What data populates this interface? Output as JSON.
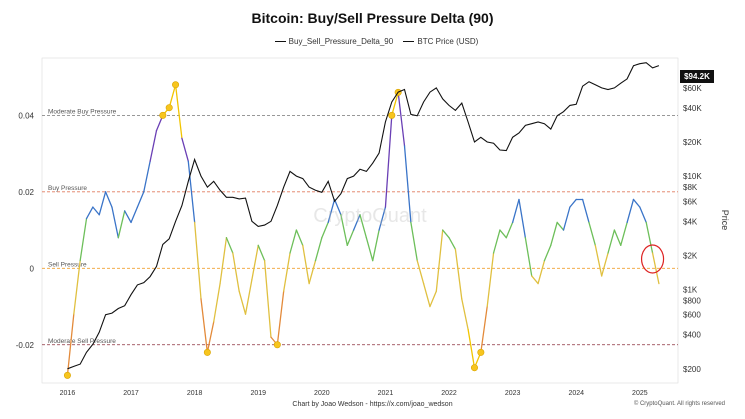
{
  "chart_data": {
    "type": "line",
    "title": "Bitcoin: Buy/Sell Pressure Delta (90)",
    "xlabel": "",
    "ylabel": "",
    "y2label": "Price",
    "legend": [
      "Buy_Sell_Pressure_Delta_90",
      "BTC Price (USD)"
    ],
    "legend_position": "top",
    "grid": false,
    "y_ticks": [
      "0.04",
      "0.02",
      "0",
      "-0.02"
    ],
    "y2_ticks": [
      "$60K",
      "$40K",
      "$20K",
      "$10K",
      "$8K",
      "$6K",
      "$4K",
      "$2K",
      "$1K",
      "$800",
      "$600",
      "$400",
      "$200"
    ],
    "x_ticks": [
      "2016",
      "2017",
      "2018",
      "2019",
      "2020",
      "2021",
      "2022",
      "2023",
      "2024",
      "2025"
    ],
    "x_range": [
      "2016-01",
      "2025-06"
    ],
    "ylim": [
      -0.03,
      0.055
    ],
    "current_price_label": "$94.2K",
    "reference_lines": [
      {
        "label": "Moderate Buy Pressure",
        "value": 0.04,
        "color": "#777777"
      },
      {
        "label": "Buy Pressure",
        "value": 0.02,
        "color": "#e07a5f"
      },
      {
        "label": "Sell Pressure",
        "value": 0.0,
        "color": "#f0a030"
      },
      {
        "label": "Moderate Sell Pressure",
        "value": -0.02,
        "color": "#8b2d3b"
      }
    ],
    "series": [
      {
        "name": "Buy_Sell_Pressure_Delta_90",
        "x": [
          2016.0,
          2016.1,
          2016.2,
          2016.3,
          2016.4,
          2016.5,
          2016.6,
          2016.7,
          2016.8,
          2016.9,
          2017.0,
          2017.1,
          2017.2,
          2017.3,
          2017.4,
          2017.5,
          2017.6,
          2017.7,
          2017.8,
          2017.9,
          2018.0,
          2018.1,
          2018.2,
          2018.3,
          2018.4,
          2018.5,
          2018.6,
          2018.7,
          2018.8,
          2018.9,
          2019.0,
          2019.1,
          2019.2,
          2019.3,
          2019.4,
          2019.5,
          2019.6,
          2019.7,
          2019.8,
          2019.9,
          2020.0,
          2020.1,
          2020.2,
          2020.3,
          2020.4,
          2020.5,
          2020.6,
          2020.7,
          2020.8,
          2020.9,
          2021.0,
          2021.1,
          2021.2,
          2021.3,
          2021.4,
          2021.5,
          2021.6,
          2021.7,
          2021.8,
          2021.9,
          2022.0,
          2022.1,
          2022.2,
          2022.3,
          2022.4,
          2022.5,
          2022.6,
          2022.7,
          2022.8,
          2022.9,
          2023.0,
          2023.1,
          2023.2,
          2023.3,
          2023.4,
          2023.5,
          2023.6,
          2023.7,
          2023.8,
          2023.9,
          2024.0,
          2024.1,
          2024.2,
          2024.3,
          2024.4,
          2024.5,
          2024.6,
          2024.7,
          2024.8,
          2024.9,
          2025.0,
          2025.1,
          2025.2,
          2025.3
        ],
        "values": [
          -0.028,
          -0.012,
          0.002,
          0.013,
          0.016,
          0.014,
          0.02,
          0.016,
          0.008,
          0.015,
          0.012,
          0.016,
          0.02,
          0.028,
          0.036,
          0.04,
          0.042,
          0.048,
          0.034,
          0.028,
          0.012,
          -0.008,
          -0.022,
          -0.014,
          -0.004,
          0.008,
          0.004,
          -0.006,
          -0.012,
          -0.003,
          0.006,
          0.002,
          -0.018,
          -0.02,
          -0.006,
          0.004,
          0.01,
          0.006,
          -0.004,
          0.002,
          0.008,
          0.012,
          0.018,
          0.014,
          0.006,
          0.01,
          0.014,
          0.008,
          0.002,
          0.01,
          0.016,
          0.04,
          0.046,
          0.032,
          0.012,
          0.002,
          -0.004,
          -0.01,
          -0.006,
          0.01,
          0.008,
          0.005,
          -0.008,
          -0.016,
          -0.026,
          -0.022,
          -0.01,
          0.004,
          0.01,
          0.008,
          0.012,
          0.018,
          0.008,
          -0.002,
          -0.004,
          0.002,
          0.006,
          0.012,
          0.01,
          0.016,
          0.018,
          0.018,
          0.012,
          0.006,
          -0.002,
          0.004,
          0.01,
          0.006,
          0.012,
          0.018,
          0.016,
          0.012,
          0.004,
          -0.004
        ]
      },
      {
        "name": "BTC Price (USD)",
        "x": [
          2016.0,
          2016.1,
          2016.2,
          2016.3,
          2016.4,
          2016.5,
          2016.6,
          2016.7,
          2016.8,
          2016.9,
          2017.0,
          2017.1,
          2017.2,
          2017.3,
          2017.4,
          2017.5,
          2017.6,
          2017.7,
          2017.8,
          2017.9,
          2018.0,
          2018.1,
          2018.2,
          2018.3,
          2018.4,
          2018.5,
          2018.6,
          2018.7,
          2018.8,
          2018.9,
          2019.0,
          2019.1,
          2019.2,
          2019.3,
          2019.4,
          2019.5,
          2019.6,
          2019.7,
          2019.8,
          2019.9,
          2020.0,
          2020.1,
          2020.2,
          2020.3,
          2020.4,
          2020.5,
          2020.6,
          2020.7,
          2020.8,
          2020.9,
          2021.0,
          2021.1,
          2021.2,
          2021.3,
          2021.4,
          2021.5,
          2021.6,
          2021.7,
          2021.8,
          2021.9,
          2022.0,
          2022.1,
          2022.2,
          2022.3,
          2022.4,
          2022.5,
          2022.6,
          2022.7,
          2022.8,
          2022.9,
          2023.0,
          2023.1,
          2023.2,
          2023.3,
          2023.4,
          2023.5,
          2023.6,
          2023.7,
          2023.8,
          2023.9,
          2024.0,
          2024.1,
          2024.2,
          2024.3,
          2024.4,
          2024.5,
          2024.6,
          2024.7,
          2024.8,
          2024.9,
          2025.0,
          2025.1,
          2025.2,
          2025.3
        ],
        "values": [
          200,
          210,
          220,
          280,
          330,
          420,
          600,
          620,
          680,
          720,
          900,
          1100,
          1150,
          1300,
          1600,
          2500,
          2800,
          4000,
          5500,
          9000,
          14000,
          10000,
          8000,
          9000,
          7500,
          6500,
          6500,
          6300,
          6400,
          4000,
          3600,
          3700,
          4000,
          5500,
          8000,
          11000,
          10000,
          9500,
          8000,
          7500,
          7200,
          9000,
          6000,
          7000,
          9500,
          10000,
          11500,
          11000,
          13000,
          16000,
          30000,
          45000,
          55000,
          58000,
          35000,
          34000,
          45000,
          55000,
          60000,
          48000,
          42000,
          38000,
          44000,
          30000,
          20000,
          22000,
          20000,
          19500,
          17000,
          16800,
          22000,
          24000,
          28000,
          29000,
          30000,
          29000,
          26000,
          34000,
          37000,
          42000,
          43000,
          62000,
          68000,
          64000,
          60000,
          58000,
          60000,
          66000,
          72000,
          94000,
          98000,
          100000,
          90000,
          94200
        ]
      }
    ]
  },
  "footer": {
    "credit": "Chart by Joao Wedson - https://x.com/joao_wedson",
    "copyright": "© CryptoQuant. All rights reserved"
  }
}
